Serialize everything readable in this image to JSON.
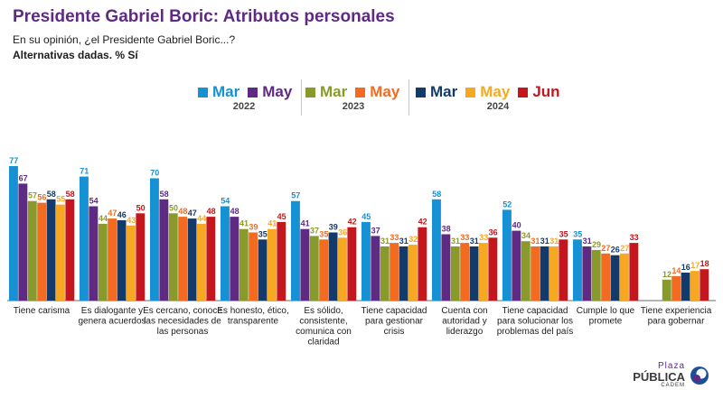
{
  "header": {
    "title": "Presidente Gabriel Boric: Atributos personales",
    "subtitle": "En su opinión, ¿el Presidente Gabriel Boric...?",
    "note": "Alternativas dadas. % Sí"
  },
  "legend": {
    "groups": [
      {
        "year": "2022",
        "items": [
          {
            "label": "Mar",
            "color": "#1591d4"
          },
          {
            "label": "May",
            "color": "#5e2a84"
          }
        ]
      },
      {
        "year": "2023",
        "items": [
          {
            "label": "Mar",
            "color": "#8a9a2a"
          },
          {
            "label": "May",
            "color": "#f26b21"
          }
        ]
      },
      {
        "year": "2024",
        "items": [
          {
            "label": "Mar",
            "color": "#143a6b"
          },
          {
            "label": "May",
            "color": "#f7a823"
          },
          {
            "label": "Jun",
            "color": "#c4161c"
          }
        ]
      }
    ]
  },
  "chart_data": {
    "type": "bar",
    "categories": [
      "Tiene carisma",
      "Es dialogante y genera acuerdos",
      "Es cercano, conoce las necesidades de las personas",
      "Es honesto, ético, transparente",
      "Es sólido, consistente, comunica con claridad",
      "Tiene capacidad para gestionar crisis",
      "Cuenta con autoridad y liderazgo",
      "Tiene capacidad para solucionar los problemas del país",
      "Cumple lo que promete",
      "Tiene experiencia para gobernar"
    ],
    "series": [
      {
        "name": "Mar 2022",
        "color": "#1591d4",
        "values": [
          77,
          71,
          70,
          54,
          57,
          45,
          58,
          52,
          35,
          null
        ]
      },
      {
        "name": "May 2022",
        "color": "#5e2a84",
        "values": [
          67,
          54,
          58,
          48,
          41,
          37,
          38,
          40,
          31,
          null
        ]
      },
      {
        "name": "Mar 2023",
        "color": "#8a9a2a",
        "values": [
          57,
          44,
          50,
          41,
          37,
          31,
          31,
          34,
          29,
          12
        ]
      },
      {
        "name": "May 2023",
        "color": "#f26b21",
        "values": [
          56,
          47,
          48,
          39,
          35,
          33,
          33,
          31,
          27,
          14
        ]
      },
      {
        "name": "Mar 2024",
        "color": "#143a6b",
        "values": [
          58,
          46,
          47,
          35,
          39,
          31,
          31,
          31,
          26,
          16
        ]
      },
      {
        "name": "May 2024",
        "color": "#f7a823",
        "values": [
          55,
          43,
          44,
          41,
          36,
          32,
          33,
          31,
          27,
          17
        ]
      },
      {
        "name": "Jun 2024",
        "color": "#c4161c",
        "values": [
          58,
          50,
          48,
          45,
          42,
          42,
          36,
          35,
          33,
          18
        ]
      }
    ],
    "ylim": [
      0,
      80
    ],
    "data_labels": true,
    "grid": false,
    "legend_position": "top-center"
  },
  "brand": {
    "line1": "Plaza",
    "line2": "PÚBLICA",
    "line3": "CADEM"
  }
}
